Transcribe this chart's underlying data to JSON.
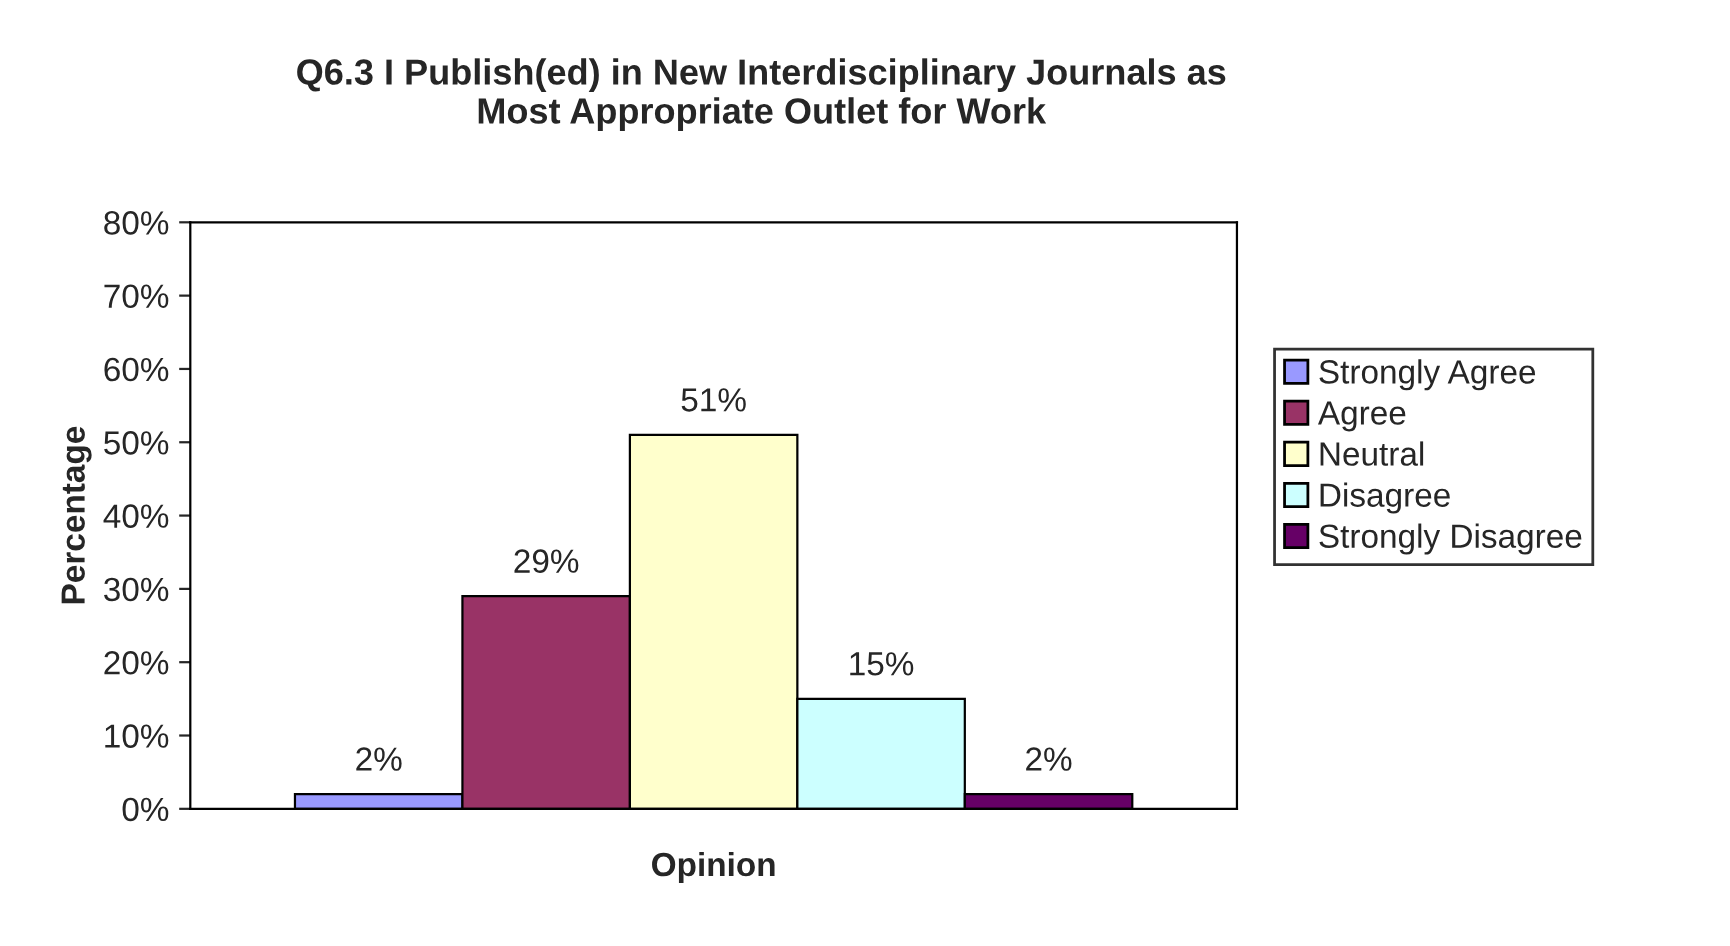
{
  "chart_data": {
    "type": "bar",
    "title": "Q6.3 I Publish(ed) in New Interdisciplinary Journals as\nMost Appropriate Outlet for Work",
    "xlabel": "Opinion",
    "ylabel": "Percentage",
    "categories": [
      null
    ],
    "series": [
      {
        "name": "Strongly Agree",
        "color": "#9999ff",
        "values": [
          2
        ],
        "value_labels": [
          "2%"
        ]
      },
      {
        "name": "Agree",
        "color": "#993366",
        "values": [
          29
        ],
        "value_labels": [
          "29%"
        ]
      },
      {
        "name": "Neutral",
        "color": "#ffffcc",
        "values": [
          51
        ],
        "value_labels": [
          "51%"
        ]
      },
      {
        "name": "Disagree",
        "color": "#ccffff",
        "values": [
          15
        ],
        "value_labels": [
          "15%"
        ]
      },
      {
        "name": "Strongly Disagree",
        "color": "#660066",
        "values": [
          2
        ],
        "value_labels": [
          "2%"
        ]
      }
    ],
    "ylim": [
      0,
      80
    ],
    "yticks": [
      {
        "value": 0,
        "label": "0%"
      },
      {
        "value": 10,
        "label": "10%"
      },
      {
        "value": 20,
        "label": "20%"
      },
      {
        "value": 30,
        "label": "30%"
      },
      {
        "value": 40,
        "label": "40%"
      },
      {
        "value": 50,
        "label": "50%"
      },
      {
        "value": 60,
        "label": "60%"
      },
      {
        "value": 70,
        "label": "70%"
      },
      {
        "value": 80,
        "label": "80%"
      }
    ],
    "grid": false,
    "legend": "right"
  }
}
